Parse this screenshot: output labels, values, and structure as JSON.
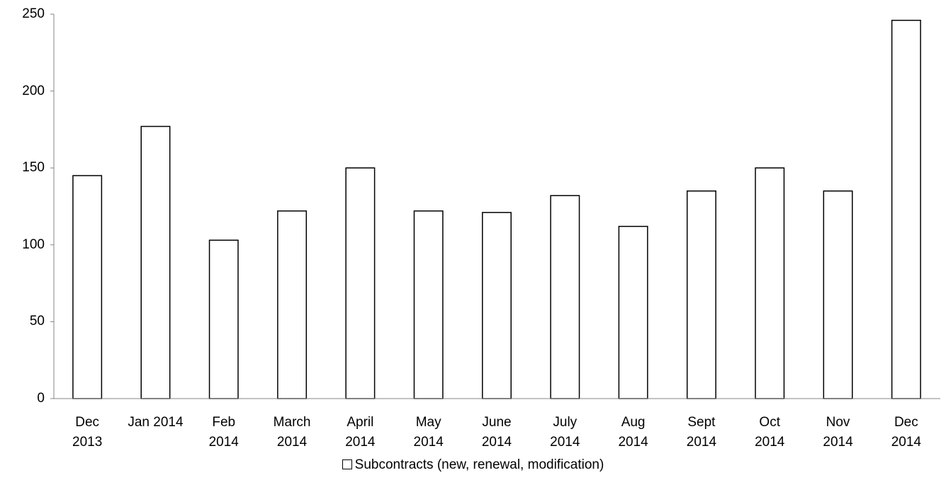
{
  "chart_data": {
    "type": "bar",
    "categories": [
      "Dec\n2013",
      "Jan 2014",
      "Feb\n2014",
      "March\n2014",
      "April\n2014",
      "May\n2014",
      "June\n2014",
      "July\n2014",
      "Aug\n2014",
      "Sept\n2014",
      "Oct\n2014",
      "Nov\n2014",
      "Dec\n2014"
    ],
    "series": [
      {
        "name": "Subcontracts (new, renewal, modification)",
        "color": "#ffffff",
        "values": [
          145,
          177,
          103,
          122,
          150,
          122,
          121,
          132,
          112,
          135,
          150,
          135,
          246
        ]
      }
    ],
    "ylim": [
      0,
      250
    ],
    "yticks": [
      0,
      50,
      100,
      150,
      200,
      250
    ],
    "grid": false,
    "legend": "bottom"
  }
}
